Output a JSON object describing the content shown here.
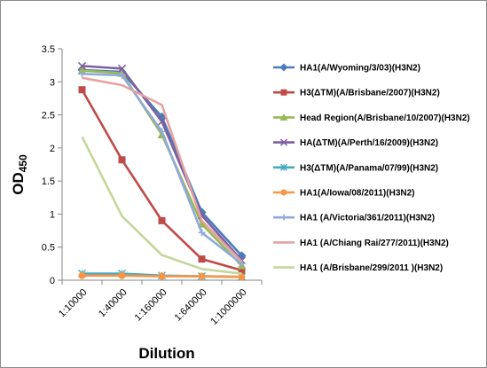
{
  "chart_data": {
    "type": "line",
    "title": "",
    "xlabel": "Dilution",
    "ylabel": "OD",
    "ylabel_subscript": "450",
    "categories": [
      "1:10000",
      "1:40000",
      "1:160000",
      "1:640000",
      "1:1000000"
    ],
    "ylim": [
      0,
      3.5
    ],
    "yticks": [
      "0",
      "0.5",
      "1",
      "1.5",
      "2",
      "2.5",
      "3",
      "3.5"
    ],
    "grid": false,
    "legend_position": "right",
    "series": [
      {
        "name": "HA1(A/Wyoming/3/03)(H3N2)",
        "color": "#4a7ebb",
        "marker": "diamond",
        "values": [
          3.18,
          3.15,
          2.47,
          1.03,
          0.37
        ]
      },
      {
        "name": "H3(ΔTM)(A/Brisbane/2007)(H3N2)",
        "color": "#be4b48",
        "marker": "square",
        "values": [
          2.88,
          1.82,
          0.9,
          0.32,
          0.15
        ]
      },
      {
        "name": "Head Region(A/Brisbane/10/2007)(H3N2)",
        "color": "#98b954",
        "marker": "triangle",
        "values": [
          3.17,
          3.13,
          2.2,
          0.85,
          0.22
        ]
      },
      {
        "name": "HA(ΔTM)(A/Perth/16/2009)(H3N2)",
        "color": "#7d60a0",
        "marker": "x",
        "values": [
          3.24,
          3.2,
          2.4,
          0.98,
          0.3
        ]
      },
      {
        "name": "H3(ΔTM)(A/Panama/07/99)(H3N2)",
        "color": "#46aac5",
        "marker": "asterisk",
        "values": [
          0.1,
          0.1,
          0.07,
          0.06,
          0.05
        ]
      },
      {
        "name": "HA1(A/Iowa/08/2011)(H3N2)",
        "color": "#f79646",
        "marker": "circle",
        "values": [
          0.07,
          0.07,
          0.06,
          0.06,
          0.05
        ]
      },
      {
        "name": "HA1 (A/Victoria/361/2011)(H3N2)",
        "color": "#8faadc",
        "marker": "plus",
        "values": [
          3.12,
          3.1,
          2.25,
          0.72,
          0.25
        ]
      },
      {
        "name": "HA1 (A/Chiang Rai/277/2011)(H3N2)",
        "color": "#e6a2a0",
        "marker": "none",
        "values": [
          3.06,
          2.95,
          2.65,
          0.9,
          0.28
        ]
      },
      {
        "name": "HA1 (A/Brisbane/299/2011 )(H3N2)",
        "color": "#c3d69b",
        "marker": "none",
        "values": [
          2.17,
          0.97,
          0.38,
          0.17,
          0.1
        ]
      }
    ]
  }
}
